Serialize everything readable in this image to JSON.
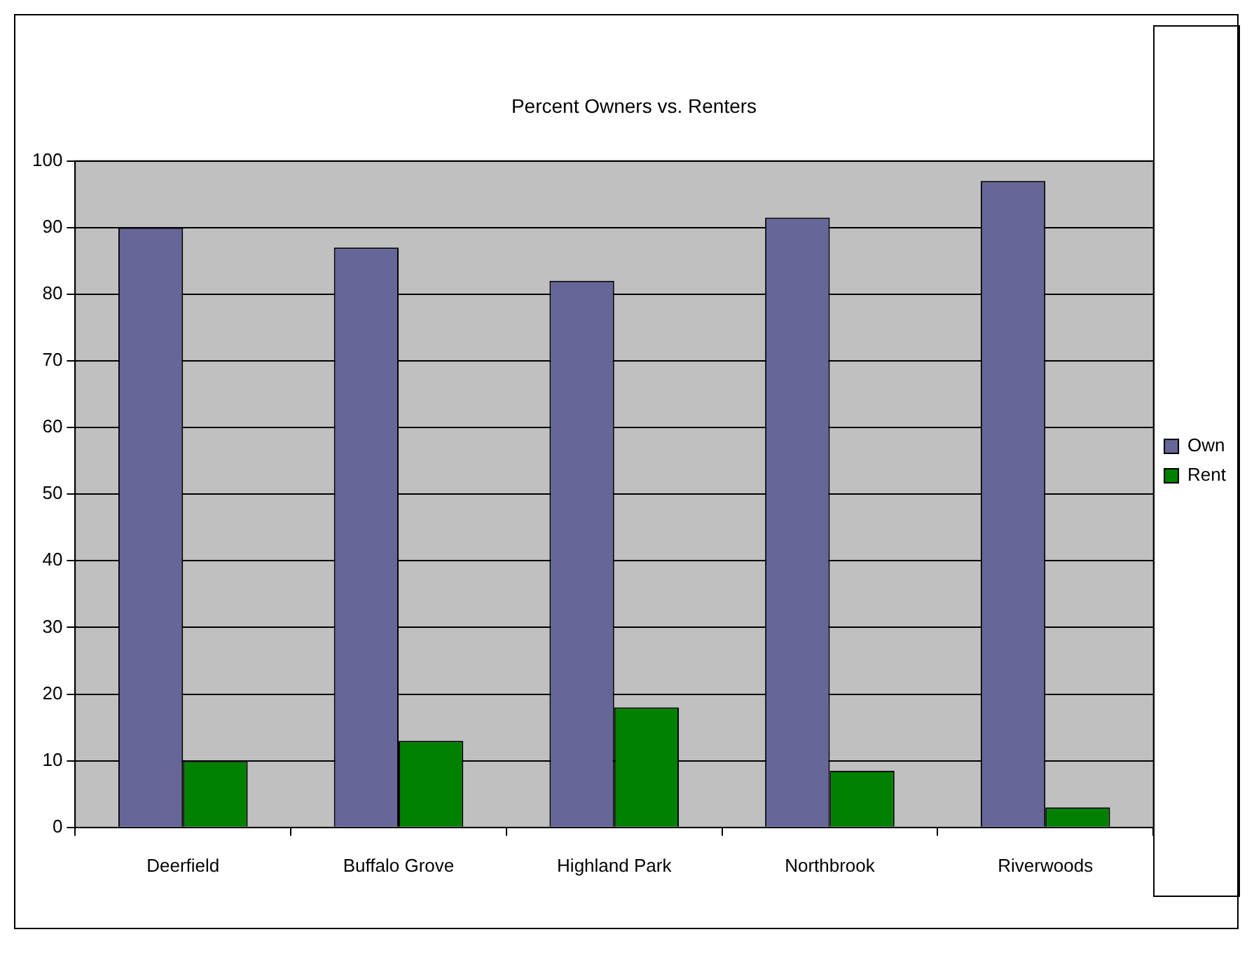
{
  "chart_data": {
    "type": "bar",
    "title": "Percent Owners vs. Renters",
    "categories": [
      "Deerfield",
      "Buffalo Grove",
      "Highland Park",
      "Northbrook",
      "Riverwoods"
    ],
    "series": [
      {
        "name": "Own",
        "color": "#666699",
        "values": [
          90,
          87,
          82,
          91.5,
          97
        ]
      },
      {
        "name": "Rent",
        "color": "#008000",
        "values": [
          10,
          13,
          18,
          8.5,
          3
        ]
      }
    ],
    "ylim": [
      0,
      100
    ],
    "yticks": [
      0,
      10,
      20,
      30,
      40,
      50,
      60,
      70,
      80,
      90,
      100
    ],
    "grid": "y",
    "legend": "right"
  }
}
